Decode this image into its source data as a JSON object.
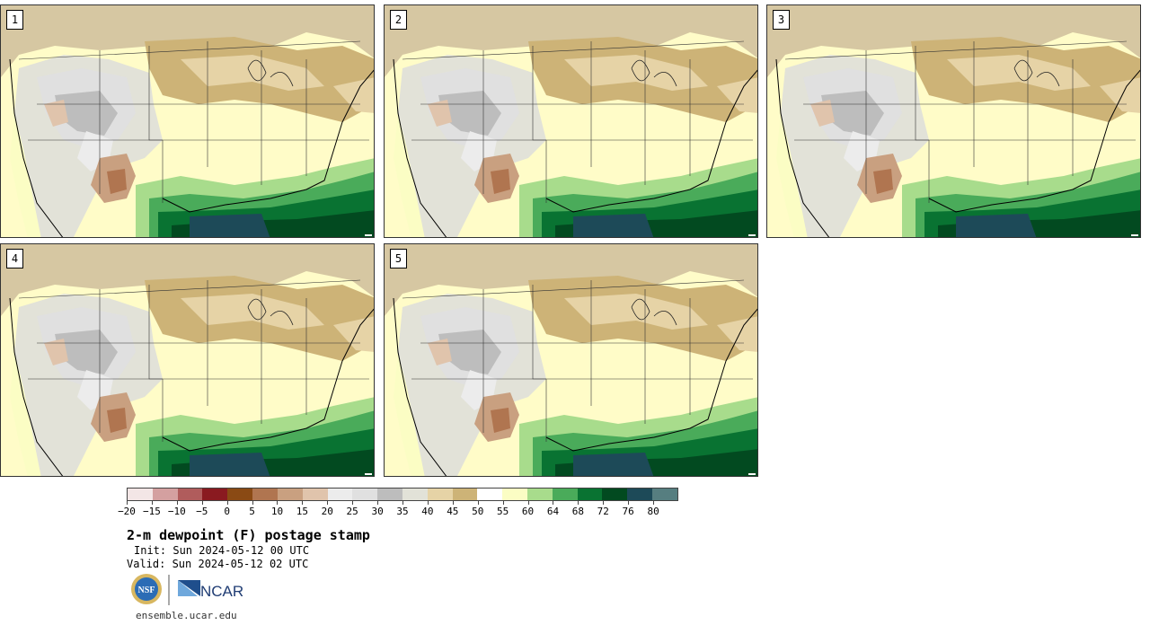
{
  "panels": [
    {
      "label": "1"
    },
    {
      "label": "2"
    },
    {
      "label": "3"
    },
    {
      "label": "4"
    },
    {
      "label": "5"
    }
  ],
  "colorbar": {
    "colors": [
      "#f3e6e6",
      "#d4a0a0",
      "#b05c5c",
      "#8a1a20",
      "#8a4a14",
      "#b07550",
      "#c9a080",
      "#e0c4ac",
      "#ececec",
      "#e0e0e0",
      "#bdbdbd",
      "#e2e2d8",
      "#e6d3a6",
      "#cdb377",
      "#ffffff",
      "#fbfdc4",
      "#a8dc8c",
      "#4aab5a",
      "#097332",
      "#024a20",
      "#1d4a58",
      "#567e80"
    ],
    "ticks": [
      "−20",
      "−15",
      "−10",
      "−5",
      "0",
      "5",
      "10",
      "15",
      "20",
      "25",
      "30",
      "35",
      "40",
      "45",
      "50",
      "55",
      "60",
      "64",
      "68",
      "72",
      "76",
      "80"
    ]
  },
  "title": "2-m dewpoint (F) postage stamp",
  "init": "Init: Sun 2024-05-12 00 UTC",
  "valid": "Valid: Sun 2024-05-12 02 UTC",
  "logos": {
    "nsf": "NSF",
    "ncar": "NCAR"
  },
  "url": "ensemble.ucar.edu"
}
